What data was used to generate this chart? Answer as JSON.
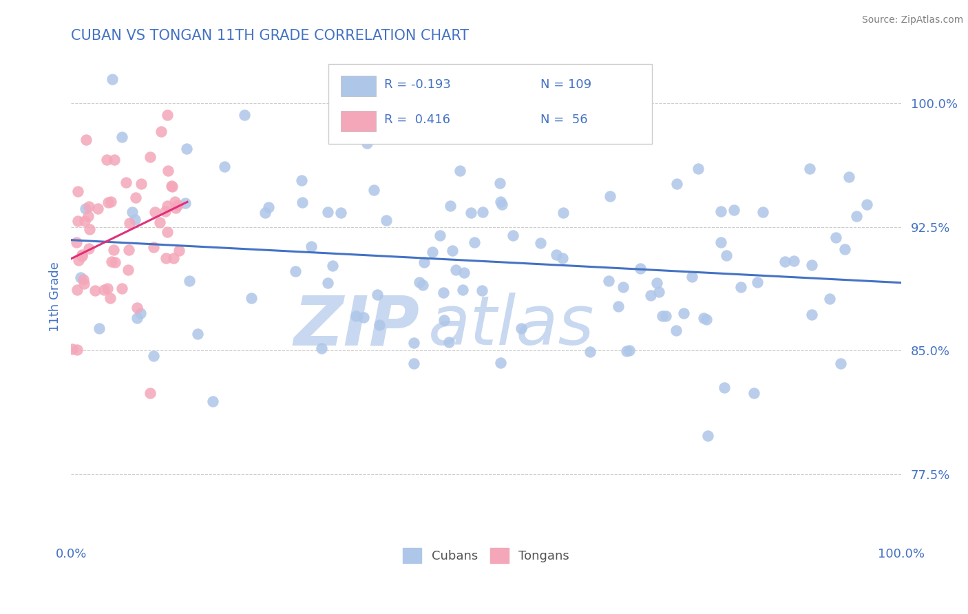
{
  "title": "CUBAN VS TONGAN 11TH GRADE CORRELATION CHART",
  "source_text": "Source: ZipAtlas.com",
  "ylabel": "11th Grade",
  "ytick_labels": [
    "77.5%",
    "85.0%",
    "92.5%",
    "100.0%"
  ],
  "ytick_values": [
    0.775,
    0.85,
    0.925,
    1.0
  ],
  "xlim": [
    0.0,
    1.0
  ],
  "ylim": [
    0.735,
    1.03
  ],
  "cubans_color": "#aec6e8",
  "tongans_color": "#f4a7b9",
  "trendline_cubans_color": "#4472c4",
  "trendline_tongans_color": "#e0307a",
  "title_color": "#4472c4",
  "axis_label_color": "#4472c4",
  "tick_label_color": "#4472c4",
  "source_color": "#808080",
  "watermark_zip": "ZIP",
  "watermark_atlas": "atlas",
  "watermark_color": "#c8d8f0",
  "cubans_R": -0.193,
  "cubans_N": 109,
  "tongans_R": 0.416,
  "tongans_N": 56,
  "grid_color": "#cccccc",
  "background_color": "#ffffff",
  "legend_r1": "R = -0.193",
  "legend_n1": "N = 109",
  "legend_r2": "R =  0.416",
  "legend_n2": "N =  56"
}
